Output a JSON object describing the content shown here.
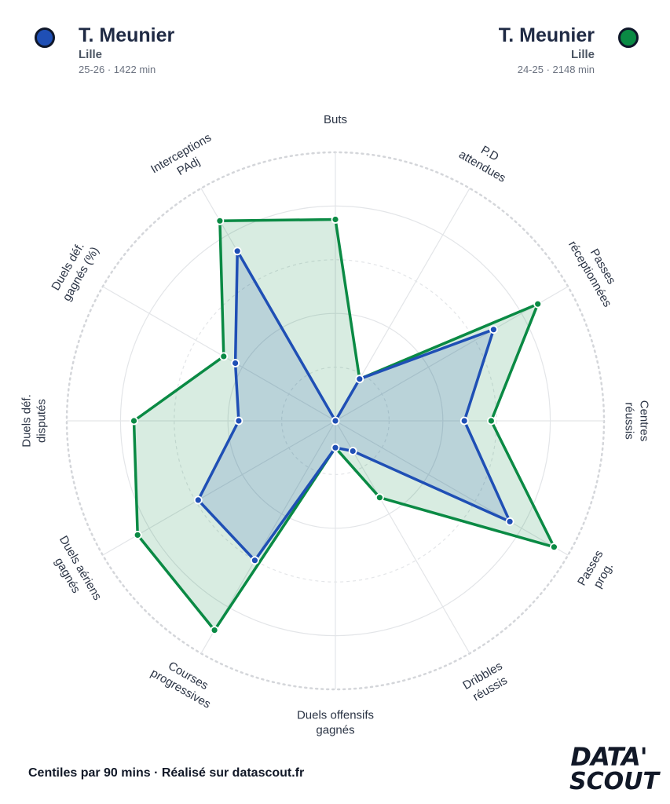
{
  "header": {
    "left": {
      "name": "T. Meunier",
      "club": "Lille",
      "meta": "25-26 · 1422 min",
      "color": "#1f4fb5"
    },
    "right": {
      "name": "T. Meunier",
      "club": "Lille",
      "meta": "24-25 · 2148 min",
      "color": "#0a8a44"
    }
  },
  "footer": {
    "text": "Centiles par 90 mins · Réalisé sur datascout.fr"
  },
  "logo": {
    "line1": "DATA'",
    "line2": "SCOUT"
  },
  "chart_data": {
    "type": "radar",
    "axes": [
      "Buts",
      "P.D\nattendues",
      "Passes\nréceptionnées",
      "Centres\nréussis",
      "Passes\nprog.",
      "Dribbles\nréussis",
      "Duels offensifs\ngagnés",
      "Courses\nprogressives",
      "Duels aériens\ngagnés",
      "Duels déf.\ndisputés",
      "Duels déf.\ngagnés (%)",
      "Interceptions\nPAdj"
    ],
    "range": [
      0,
      100
    ],
    "series": [
      {
        "name": "T. Meunier 24-25",
        "color": "#0a8a44",
        "fill": "rgba(10,138,68,0.16)",
        "values": [
          75,
          18,
          87,
          58,
          94,
          33,
          10,
          90,
          85,
          75,
          48,
          86
        ]
      },
      {
        "name": "T. Meunier 25-26",
        "color": "#1f4fb5",
        "fill": "rgba(31,79,181,0.16)",
        "values": [
          0,
          18,
          68,
          48,
          75,
          13,
          10,
          60,
          59,
          36,
          43,
          73
        ]
      }
    ]
  }
}
